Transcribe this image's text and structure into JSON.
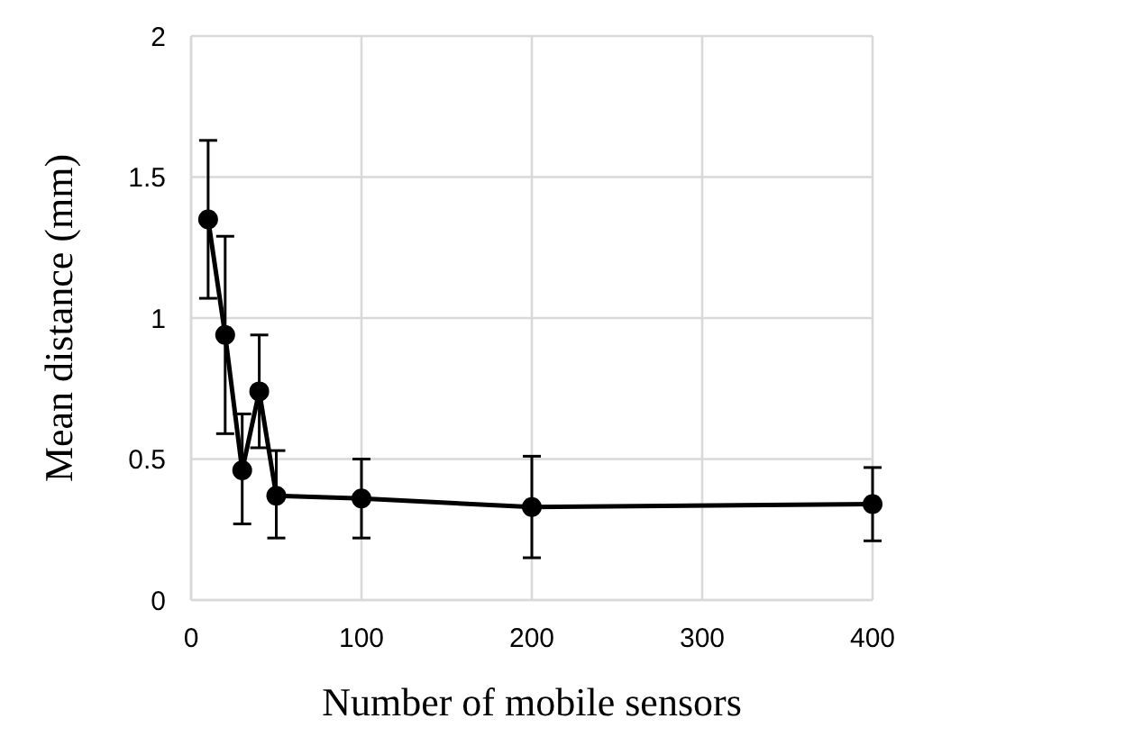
{
  "chart_data": {
    "type": "line",
    "xlabel": "Number of mobile sensors",
    "ylabel": "Mean distance (mm)",
    "x": [
      10,
      20,
      30,
      40,
      50,
      100,
      200,
      400
    ],
    "series": [
      {
        "color": "#000000",
        "values": [
          1.35,
          0.94,
          0.46,
          0.74,
          0.37,
          0.36,
          0.33,
          0.34
        ],
        "errors": [
          [
            1.07,
            1.63
          ],
          [
            0.59,
            1.29
          ],
          [
            0.27,
            0.66
          ],
          [
            0.54,
            0.94
          ],
          [
            0.22,
            0.53
          ],
          [
            0.22,
            0.5
          ],
          [
            0.15,
            0.51
          ],
          [
            0.21,
            0.47
          ]
        ]
      }
    ],
    "xlim": [
      0,
      400
    ],
    "xticks": [
      0,
      100,
      200,
      300,
      400
    ],
    "ylim": [
      0,
      2
    ],
    "yticks": [
      0,
      0.5,
      1,
      1.5,
      2
    ],
    "grid": true,
    "marker": "circle",
    "line_style": "solid"
  }
}
